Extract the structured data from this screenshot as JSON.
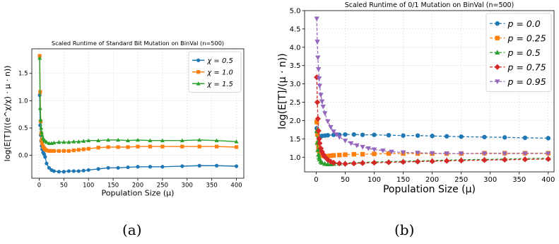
{
  "captions": [
    "(a)",
    "(b)"
  ],
  "chart_data": [
    {
      "type": "line",
      "title": "Scaled Runtime of Standard Bit Mutation on BinVal (n=500)",
      "xlabel": "Population Size (μ)",
      "ylabel": "log(E[T]/((e^χ/χ) · μ · n))",
      "xlim": [
        -15,
        415
      ],
      "ylim": [
        -0.42,
        1.95
      ],
      "xticks": [
        0,
        50,
        100,
        150,
        200,
        250,
        300,
        350,
        400
      ],
      "yticks": [
        0.0,
        0.5,
        1.0,
        1.5
      ],
      "ytick_labels": [
        "0.0",
        "0.5",
        "1.0",
        "1.5"
      ],
      "grid": true,
      "legend_position": "top-right",
      "series": [
        {
          "name": "χ = 0.5",
          "color": "#1f77b4",
          "marker": "circle",
          "line": "solid",
          "x": [
            1,
            2,
            3,
            4,
            5,
            6,
            8,
            10,
            12,
            15,
            20,
            25,
            30,
            40,
            50,
            60,
            70,
            80,
            90,
            100,
            120,
            140,
            160,
            180,
            200,
            225,
            250,
            290,
            325,
            360,
            400
          ],
          "y": [
            1.1,
            0.55,
            0.37,
            0.26,
            0.17,
            0.11,
            0.05,
            0.02,
            -0.03,
            -0.15,
            -0.23,
            -0.27,
            -0.29,
            -0.3,
            -0.3,
            -0.29,
            -0.29,
            -0.29,
            -0.28,
            -0.27,
            -0.25,
            -0.23,
            -0.23,
            -0.22,
            -0.21,
            -0.21,
            -0.21,
            -0.2,
            -0.19,
            -0.19,
            -0.2
          ]
        },
        {
          "name": "χ = 1.0",
          "color": "#ff7f0e",
          "marker": "square",
          "line": "solid",
          "x": [
            1,
            2,
            3,
            4,
            5,
            6,
            8,
            10,
            12,
            15,
            20,
            25,
            30,
            40,
            50,
            60,
            70,
            80,
            90,
            100,
            120,
            140,
            160,
            180,
            200,
            225,
            250,
            290,
            325,
            360,
            400
          ],
          "y": [
            1.82,
            1.16,
            0.62,
            0.4,
            0.28,
            0.22,
            0.16,
            0.13,
            0.11,
            0.09,
            0.08,
            0.08,
            0.08,
            0.08,
            0.08,
            0.08,
            0.09,
            0.1,
            0.11,
            0.12,
            0.14,
            0.15,
            0.15,
            0.15,
            0.16,
            0.16,
            0.16,
            0.16,
            0.16,
            0.16,
            0.15
          ]
        },
        {
          "name": "χ = 1.5",
          "color": "#2ca02c",
          "marker": "triangle",
          "line": "solid",
          "x": [
            1,
            2,
            3,
            4,
            5,
            6,
            8,
            10,
            12,
            15,
            20,
            25,
            30,
            40,
            50,
            60,
            70,
            80,
            90,
            100,
            120,
            140,
            160,
            180,
            200,
            225,
            250,
            290,
            325,
            360,
            400
          ],
          "y": [
            1.78,
            0.86,
            0.65,
            0.5,
            0.42,
            0.37,
            0.31,
            0.28,
            0.26,
            0.24,
            0.22,
            0.22,
            0.23,
            0.24,
            0.24,
            0.24,
            0.25,
            0.25,
            0.26,
            0.27,
            0.27,
            0.28,
            0.28,
            0.27,
            0.28,
            0.27,
            0.27,
            0.27,
            0.28,
            0.27,
            0.25
          ]
        }
      ]
    },
    {
      "type": "line",
      "title": "Scaled Runtime of 0/1 Mutation on BinVal (n=500)",
      "xlabel": "Population Size (μ)",
      "ylabel": "log(E[T]/(μ · n))",
      "xlim": [
        -20,
        410
      ],
      "ylim": [
        0.6,
        5.0
      ],
      "xticks": [
        0,
        50,
        100,
        150,
        200,
        250,
        300,
        350,
        400
      ],
      "yticks": [
        1.0,
        1.5,
        2.0,
        2.5,
        3.0,
        3.5,
        4.0,
        4.5,
        5.0
      ],
      "ytick_labels": [
        "1.0",
        "1.5",
        "2.0",
        "2.5",
        "3.0",
        "3.5",
        "4.0",
        "4.5",
        "5.0"
      ],
      "grid": true,
      "legend_position": "top-right",
      "series": [
        {
          "name": "p = 0.0",
          "color": "#1f77b4",
          "marker": "circle",
          "line": "dashed",
          "x": [
            1,
            2,
            3,
            4,
            5,
            8,
            10,
            15,
            20,
            30,
            40,
            50,
            65,
            80,
            100,
            125,
            150,
            175,
            200,
            225,
            250,
            290,
            325,
            360,
            400
          ],
          "y": [
            1.79,
            1.65,
            1.6,
            1.58,
            1.57,
            1.57,
            1.58,
            1.59,
            1.6,
            1.61,
            1.61,
            1.62,
            1.62,
            1.61,
            1.61,
            1.6,
            1.59,
            1.59,
            1.58,
            1.57,
            1.56,
            1.55,
            1.54,
            1.53,
            1.52
          ]
        },
        {
          "name": "p = 0.25",
          "color": "#ff7f0e",
          "marker": "square",
          "line": "dashed",
          "x": [
            1,
            2,
            3,
            4,
            5,
            6,
            8,
            10,
            12,
            15,
            20,
            25,
            30,
            40,
            50,
            65,
            80,
            100,
            125,
            150,
            175,
            200,
            225,
            250,
            290,
            325,
            360,
            400
          ],
          "y": [
            1.96,
            1.62,
            1.38,
            1.25,
            1.17,
            1.12,
            1.07,
            1.05,
            1.04,
            1.03,
            1.03,
            1.04,
            1.05,
            1.06,
            1.07,
            1.08,
            1.08,
            1.09,
            1.1,
            1.1,
            1.1,
            1.1,
            1.1,
            1.1,
            1.11,
            1.11,
            1.11,
            1.11
          ]
        },
        {
          "name": "p = 0.5",
          "color": "#2ca02c",
          "marker": "triangle",
          "line": "dashed",
          "x": [
            1,
            2,
            3,
            4,
            5,
            6,
            8,
            10,
            15,
            20,
            25,
            30,
            40,
            50,
            65,
            80,
            100,
            125,
            150,
            175,
            200,
            225,
            250,
            290,
            325,
            360,
            400
          ],
          "y": [
            1.72,
            1.4,
            1.2,
            1.07,
            0.99,
            0.94,
            0.88,
            0.85,
            0.82,
            0.81,
            0.81,
            0.82,
            0.83,
            0.84,
            0.85,
            0.86,
            0.87,
            0.88,
            0.89,
            0.9,
            0.91,
            0.92,
            0.93,
            0.94,
            0.95,
            0.96,
            0.97
          ]
        },
        {
          "name": "p = 0.75",
          "color": "#d62728",
          "marker": "diamond",
          "line": "dashed",
          "x": [
            1,
            2,
            3,
            4,
            5,
            6,
            8,
            10,
            12,
            15,
            20,
            25,
            30,
            40,
            50,
            65,
            80,
            100,
            125,
            150,
            175,
            200,
            225,
            250,
            290,
            325,
            360,
            400
          ],
          "y": [
            3.18,
            2.5,
            2.05,
            1.72,
            1.5,
            1.38,
            1.24,
            1.15,
            1.08,
            1.01,
            0.93,
            0.88,
            0.85,
            0.83,
            0.82,
            0.83,
            0.84,
            0.85,
            0.86,
            0.87,
            0.88,
            0.89,
            0.9,
            0.91,
            0.92,
            0.93,
            0.94,
            0.95
          ]
        },
        {
          "name": "p = 0.95",
          "color": "#9467bd",
          "marker": "triangle-down",
          "line": "dashed",
          "x": [
            1,
            2,
            3,
            4,
            5,
            6,
            8,
            10,
            12,
            15,
            20,
            25,
            30,
            35,
            40,
            50,
            60,
            70,
            80,
            90,
            100,
            115,
            130,
            150,
            175,
            200,
            225,
            250,
            290,
            325,
            360,
            400
          ],
          "y": [
            4.78,
            4.15,
            3.72,
            3.4,
            3.15,
            2.95,
            2.7,
            2.52,
            2.38,
            2.2,
            1.98,
            1.82,
            1.7,
            1.62,
            1.55,
            1.45,
            1.38,
            1.32,
            1.28,
            1.24,
            1.21,
            1.18,
            1.15,
            1.13,
            1.12,
            1.11,
            1.1,
            1.1,
            1.1,
            1.1,
            1.1,
            1.1
          ]
        }
      ]
    }
  ]
}
